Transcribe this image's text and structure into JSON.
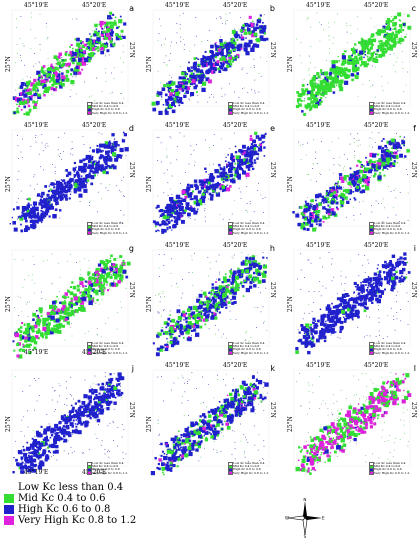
{
  "legend": {
    "items": [
      {
        "label": "Low Kc less than 0.4",
        "color": "#ffffff"
      },
      {
        "label": "Mid Kc 0.4 to 0.6",
        "color": "#33dd33"
      },
      {
        "label": "High Kc 0.6 to 0.8",
        "color": "#2020cc"
      },
      {
        "label": "Very High Kc 0.8 to 1.2",
        "color": "#dd22dd"
      }
    ]
  },
  "panels": [
    {
      "id": "a",
      "lon1": "45°19'E",
      "lon2": "45°20'E",
      "lat": "25°N",
      "mix": [
        0.5,
        0.3,
        0.2
      ]
    },
    {
      "id": "b",
      "lon1": "45°19'E",
      "lon2": "45°20'E",
      "lat": "25°N",
      "mix": [
        0.2,
        0.7,
        0.1
      ]
    },
    {
      "id": "c",
      "lon1": "45°19'E",
      "lon2": "45°20'E",
      "lat": "25°N",
      "mix": [
        0.9,
        0.1,
        0.0
      ]
    },
    {
      "id": "d",
      "lon1": "45°19'E",
      "lon2": "45°20'E",
      "lat": "25°N",
      "mix": [
        0.05,
        0.95,
        0.0
      ]
    },
    {
      "id": "e",
      "lon1": "45°19'E",
      "lon2": "45°20'E",
      "lat": "25°N",
      "mix": [
        0.1,
        0.85,
        0.05
      ]
    },
    {
      "id": "f",
      "lon1": "45°19'E",
      "lon2": "45°20'E",
      "lat": "25°N",
      "mix": [
        0.35,
        0.55,
        0.1
      ]
    },
    {
      "id": "g",
      "lon1": "45°19'E",
      "lon2": "45°20'E",
      "lat": "25°N",
      "mix": [
        0.7,
        0.15,
        0.15
      ]
    },
    {
      "id": "h",
      "lon1": "45°19'E",
      "lon2": "45°20'E",
      "lat": "25°N",
      "mix": [
        0.4,
        0.55,
        0.05
      ]
    },
    {
      "id": "i",
      "lon1": "45°19'E",
      "lon2": "45°20'E",
      "lat": "25°N",
      "mix": [
        0.05,
        0.95,
        0.0
      ]
    },
    {
      "id": "j",
      "lon1": "45°19'E",
      "lon2": "45°20'E",
      "lat": "25°N",
      "mix": [
        0.05,
        0.95,
        0.0
      ]
    },
    {
      "id": "k",
      "lon1": "45°19'E",
      "lon2": "45°20'E",
      "lat": "25°N",
      "mix": [
        0.25,
        0.7,
        0.05
      ]
    },
    {
      "id": "l",
      "lon1": "45°19'E",
      "lon2": "45°20'E",
      "lat": "25°N",
      "mix": [
        0.5,
        0.05,
        0.45
      ]
    }
  ],
  "panel_legend": [
    {
      "label": "Low Kc less than 0.4",
      "color": "#ffffff"
    },
    {
      "label": "Mid Kc 0.4 to 0.6",
      "color": "#33dd33"
    },
    {
      "label": "High Kc 0.6 to 0.8",
      "color": "#2020cc"
    },
    {
      "label": "Very High Kc 0.8 to 1.2",
      "color": "#dd22dd"
    }
  ],
  "compass": {
    "n": "N",
    "s": "S",
    "e": "E",
    "w": "W"
  }
}
